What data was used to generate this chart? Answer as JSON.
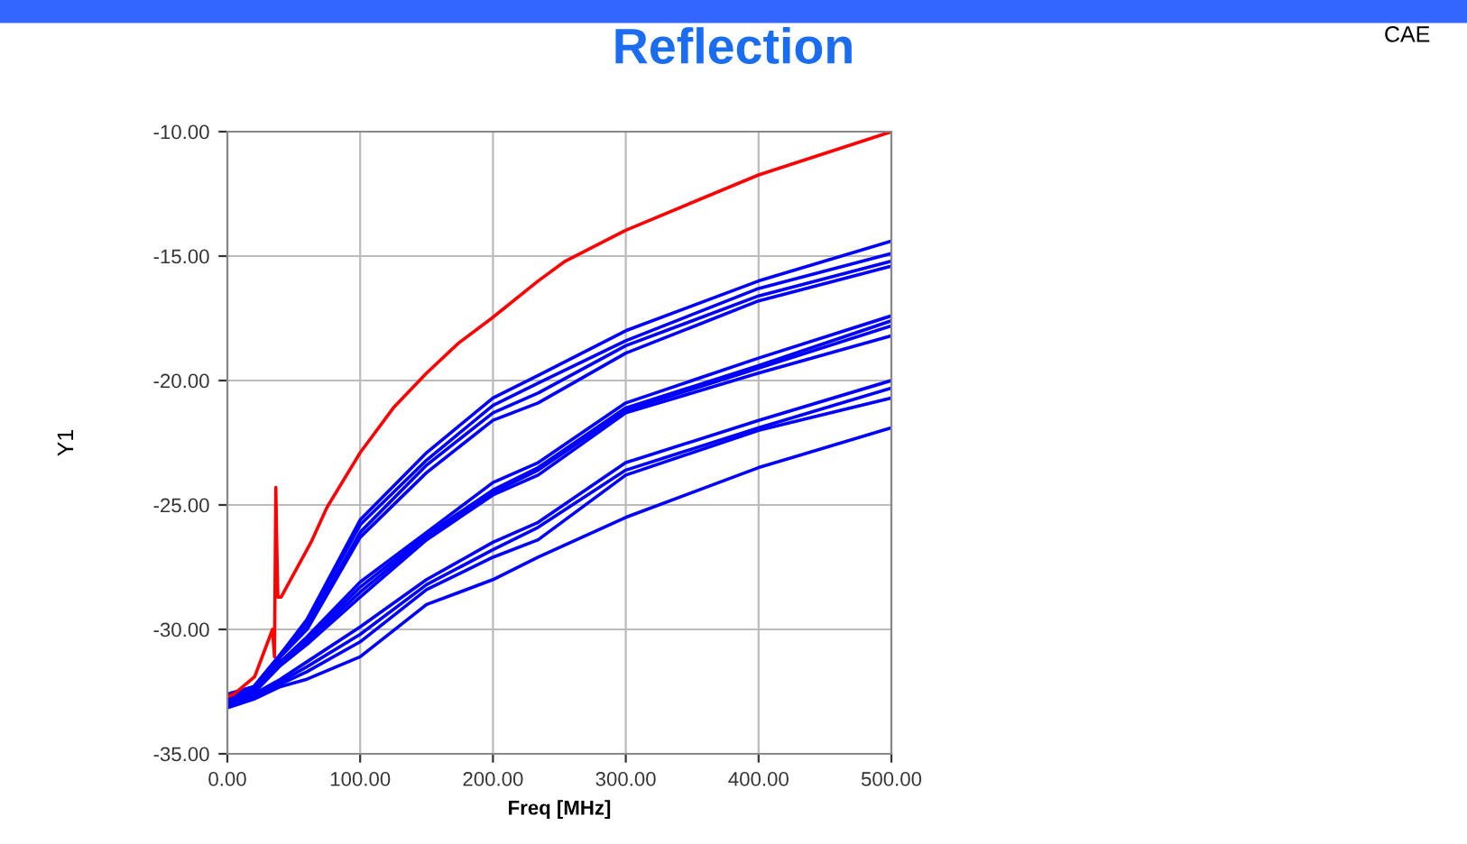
{
  "chart_data": {
    "type": "line",
    "title": "Reflection",
    "xlabel": "Freq [MHz]",
    "ylabel": "Y1",
    "annotations": [
      "CAE"
    ],
    "xlim": [
      0,
      500
    ],
    "ylim": [
      -35,
      -10
    ],
    "xticks": [
      {
        "value": 0,
        "label": "0.00"
      },
      {
        "value": 100,
        "label": "100.00"
      },
      {
        "value": 200,
        "label": "200.00"
      },
      {
        "value": 300,
        "label": "300.00"
      },
      {
        "value": 400,
        "label": "400.00"
      },
      {
        "value": 500,
        "label": "500.00"
      }
    ],
    "yticks": [
      {
        "value": -35,
        "label": "-35.00"
      },
      {
        "value": -30,
        "label": "-30.00"
      },
      {
        "value": -25,
        "label": "-25.00"
      },
      {
        "value": -20,
        "label": "-20.00"
      },
      {
        "value": -15,
        "label": "-15.00"
      },
      {
        "value": -10,
        "label": "-10.00"
      }
    ],
    "grid": true,
    "legend": false,
    "marker": "none",
    "line_style": "solid",
    "x": [
      0,
      20,
      40,
      60,
      100,
      150,
      200,
      234,
      300,
      400,
      500
    ],
    "series": [
      {
        "color": "#0000ff",
        "values": [
          -32.6,
          -32.3,
          -31.0,
          -29.6,
          -25.6,
          -22.9,
          -20.7,
          -19.8,
          -18.0,
          -16.0,
          -14.4
        ]
      },
      {
        "color": "#0000ff",
        "values": [
          -32.65,
          -32.3,
          -31.0,
          -29.7,
          -25.8,
          -23.2,
          -21.0,
          -20.1,
          -18.4,
          -16.3,
          -14.9
        ]
      },
      {
        "color": "#0000ff",
        "values": [
          -32.7,
          -32.4,
          -31.1,
          -29.9,
          -26.1,
          -23.4,
          -21.3,
          -20.5,
          -18.6,
          -16.6,
          -15.2
        ]
      },
      {
        "color": "#0000ff",
        "values": [
          -32.75,
          -32.4,
          -31.1,
          -30.0,
          -26.3,
          -23.7,
          -21.6,
          -20.9,
          -18.9,
          -16.8,
          -15.4
        ]
      },
      {
        "color": "#0000ff",
        "values": [
          -32.8,
          -32.4,
          -31.3,
          -30.3,
          -28.1,
          -26.1,
          -24.1,
          -23.3,
          -20.9,
          -19.1,
          -17.4
        ]
      },
      {
        "color": "#0000ff",
        "values": [
          -32.85,
          -32.45,
          -31.3,
          -30.4,
          -28.3,
          -26.2,
          -24.4,
          -23.5,
          -21.1,
          -19.4,
          -17.6
        ]
      },
      {
        "color": "#0000ff",
        "values": [
          -32.9,
          -32.5,
          -31.4,
          -30.5,
          -28.5,
          -26.3,
          -24.5,
          -23.6,
          -21.2,
          -19.5,
          -17.8
        ]
      },
      {
        "color": "#0000ff",
        "values": [
          -32.95,
          -32.55,
          -31.45,
          -30.6,
          -28.7,
          -26.4,
          -24.6,
          -23.8,
          -21.3,
          -19.7,
          -18.2
        ]
      },
      {
        "color": "#0000ff",
        "values": [
          -33.0,
          -32.6,
          -32.0,
          -31.3,
          -29.9,
          -28.0,
          -26.5,
          -25.7,
          -23.3,
          -21.6,
          -20.0
        ]
      },
      {
        "color": "#0000ff",
        "values": [
          -33.05,
          -32.65,
          -32.1,
          -31.5,
          -30.2,
          -28.2,
          -26.8,
          -25.9,
          -23.6,
          -21.9,
          -20.3
        ]
      },
      {
        "color": "#0000ff",
        "values": [
          -33.1,
          -32.7,
          -32.2,
          -31.7,
          -30.5,
          -28.4,
          -27.1,
          -26.4,
          -23.8,
          -22.0,
          -20.7
        ]
      },
      {
        "color": "#0000ff",
        "values": [
          -33.15,
          -32.8,
          -32.3,
          -32.0,
          -31.1,
          -29.0,
          -28.0,
          -27.1,
          -25.5,
          -23.5,
          -21.9
        ]
      },
      {
        "color": "#ff0000",
        "x": [
          0,
          5,
          20.6,
          34,
          35.5,
          36.5,
          37,
          38,
          40.5,
          63,
          75,
          100,
          125,
          150,
          174,
          199,
          234,
          254.5,
          300,
          400,
          500
        ],
        "values": [
          -32.7,
          -32.6,
          -31.9,
          -30.0,
          -31.1,
          -24.3,
          -26.0,
          -28.7,
          -28.7,
          -26.5,
          -25.1,
          -22.9,
          -21.1,
          -19.7,
          -18.5,
          -17.5,
          -16.0,
          -15.2,
          -13.96,
          -11.74,
          -10.0
        ]
      }
    ]
  }
}
